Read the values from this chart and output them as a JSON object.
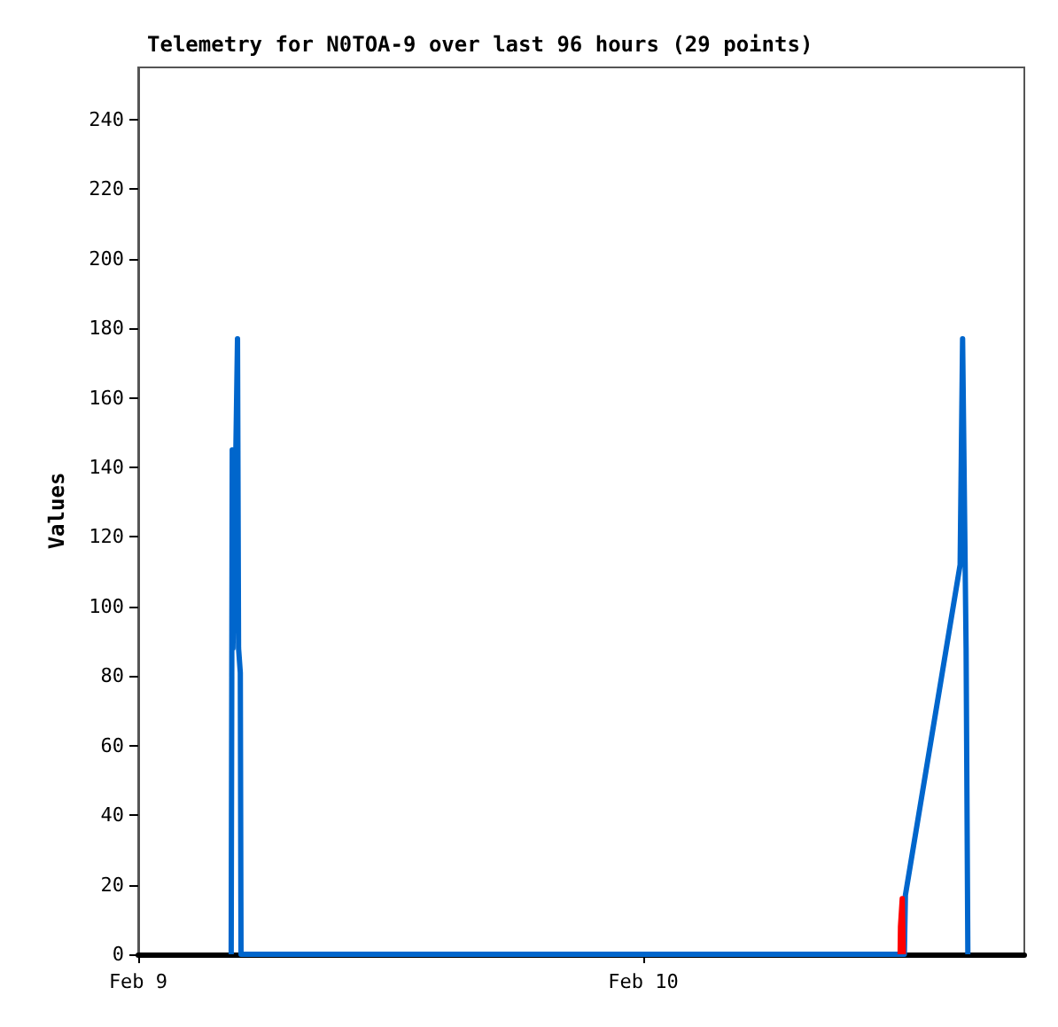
{
  "chart_data": {
    "type": "line",
    "title": "Telemetry for N0TOA-9 over last 96 hours (29 points)",
    "ylabel": "Values",
    "xlim": [
      "--02-09",
      "--02-10T18:06"
    ],
    "xticks": [
      {
        "value": "--02-09",
        "label": "Feb 9"
      },
      {
        "value": "--02-10",
        "label": "Feb 10"
      }
    ],
    "ylim": [
      0,
      255
    ],
    "yticks": [
      0,
      20,
      40,
      60,
      80,
      100,
      120,
      140,
      160,
      180,
      200,
      220,
      240
    ],
    "grid": false,
    "marker": "none",
    "line_style": "solid",
    "series": [
      {
        "color": "#0066cc",
        "x": [
          "--02-09T04:25",
          "--02-09T04:28",
          "--02-09T04:30",
          "--02-09T04:43",
          "--02-09T04:46",
          "--02-09T04:51",
          "--02-09T04:53",
          "--02-10T12:24",
          "--02-10T12:27",
          "--02-10T15:03",
          "--02-10T15:10",
          "--02-10T15:20",
          "--02-10T15:25"
        ],
        "values": [
          0,
          145,
          88,
          177,
          88,
          81,
          0,
          0,
          17,
          112,
          177,
          88,
          0
        ]
      },
      {
        "color": "#ff0000",
        "x": [
          "--02-10T12:12",
          "--02-10T12:13",
          "--02-10T12:18",
          "--02-10T12:21"
        ],
        "values": [
          0,
          8,
          16,
          0
        ]
      }
    ]
  }
}
